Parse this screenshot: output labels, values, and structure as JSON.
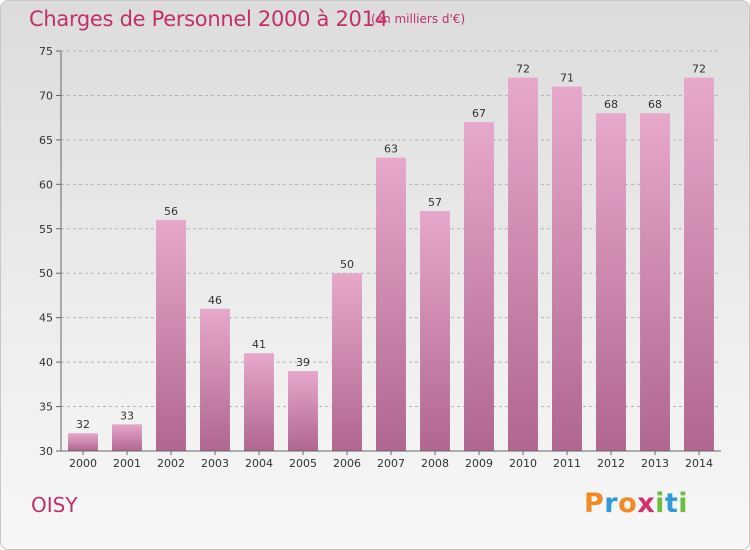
{
  "header": {
    "title": "Charges de Personnel 2000 à 2014",
    "subtitle": "(en milliers d'€)"
  },
  "footer": {
    "place": "OISY",
    "brand_letters": [
      "P",
      "r",
      "o",
      "x",
      "i",
      "t",
      "i"
    ],
    "brand_colors": [
      "#f08a24",
      "#2e9bd6",
      "#f08a24",
      "#d6306a",
      "#6cbf3a",
      "#2e9bd6",
      "#6cbf3a"
    ]
  },
  "chart_data": {
    "type": "bar",
    "categories": [
      "2000",
      "2001",
      "2002",
      "2003",
      "2004",
      "2005",
      "2006",
      "2007",
      "2008",
      "2009",
      "2010",
      "2011",
      "2012",
      "2013",
      "2014"
    ],
    "values": [
      32,
      33,
      56,
      46,
      41,
      39,
      50,
      63,
      57,
      67,
      72,
      71,
      68,
      68,
      72
    ],
    "ylim": [
      30,
      75
    ],
    "yticks": [
      30,
      35,
      40,
      45,
      50,
      55,
      60,
      65,
      70,
      75
    ],
    "grid": "horizontal dashed",
    "bar_color_top": "#e6a8cb",
    "bar_color_bottom": "#b0668f"
  }
}
